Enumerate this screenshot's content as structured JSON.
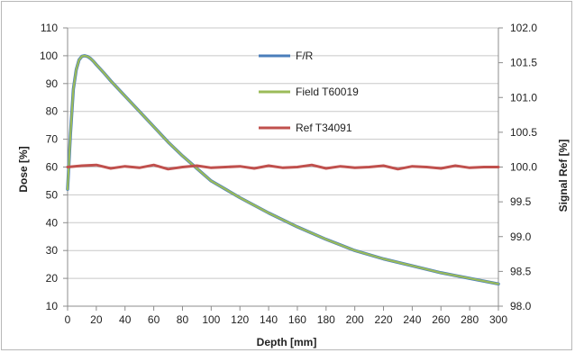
{
  "chart_data": {
    "type": "line",
    "xlabel": "Depth [mm]",
    "ylabel": "Dose [%]",
    "y2label": "Signal Ref [%]",
    "xlim": [
      0,
      300
    ],
    "ylim": [
      10,
      110
    ],
    "y2lim": [
      98.0,
      102.0
    ],
    "x_ticks": [
      "0",
      "20",
      "40",
      "60",
      "80",
      "100",
      "120",
      "140",
      "160",
      "180",
      "200",
      "220",
      "240",
      "260",
      "280",
      "300"
    ],
    "y_ticks": [
      "10",
      "20",
      "30",
      "40",
      "50",
      "60",
      "70",
      "80",
      "90",
      "100",
      "110"
    ],
    "y2_ticks": [
      "98.0",
      "98.5",
      "99.0",
      "99.5",
      "100.0",
      "100.5",
      "101.0",
      "101.5",
      "102.0"
    ],
    "grid": true,
    "legend_position": "top-center",
    "series": [
      {
        "name": "F/R",
        "axis": "left",
        "color": "#4a7ebb",
        "x": [
          0,
          2,
          4,
          6,
          8,
          10,
          12,
          14,
          16,
          18,
          20,
          25,
          30,
          40,
          50,
          60,
          70,
          80,
          90,
          100,
          110,
          120,
          140,
          160,
          180,
          200,
          220,
          240,
          260,
          280,
          300
        ],
        "y": [
          52,
          72,
          88,
          95,
          98.5,
          99.8,
          100,
          99.7,
          99,
          98,
          96.8,
          94,
          91,
          85.5,
          80,
          74.5,
          69,
          64,
          59.5,
          55,
          52,
          49,
          43.5,
          38.5,
          34,
          30,
          27,
          24.5,
          22,
          20,
          18
        ]
      },
      {
        "name": "Field T60019",
        "axis": "left",
        "color": "#9bbb59",
        "x": [
          0,
          2,
          4,
          6,
          8,
          10,
          12,
          14,
          16,
          18,
          20,
          25,
          30,
          40,
          50,
          60,
          70,
          80,
          90,
          100,
          110,
          120,
          140,
          160,
          180,
          200,
          220,
          240,
          260,
          280,
          300
        ],
        "y": [
          52,
          72,
          88,
          95,
          98.5,
          99.8,
          100,
          99.7,
          99,
          98,
          96.8,
          94,
          91,
          85.5,
          80,
          74.5,
          69,
          64,
          59.5,
          55,
          52,
          49,
          43.5,
          38.5,
          34,
          30,
          27,
          24.5,
          22,
          20,
          18
        ]
      },
      {
        "name": "Ref T34091",
        "axis": "right",
        "color": "#c0504d",
        "x": [
          0,
          10,
          20,
          30,
          40,
          50,
          60,
          70,
          80,
          90,
          100,
          110,
          120,
          130,
          140,
          150,
          160,
          170,
          180,
          190,
          200,
          210,
          220,
          230,
          240,
          250,
          260,
          270,
          280,
          290,
          300
        ],
        "y": [
          100.0,
          100.02,
          100.03,
          99.98,
          100.01,
          99.99,
          100.03,
          99.97,
          100.0,
          100.02,
          99.99,
          100.0,
          100.01,
          99.98,
          100.02,
          99.99,
          100.0,
          100.03,
          99.98,
          100.01,
          99.99,
          100.0,
          100.02,
          99.97,
          100.01,
          100.0,
          99.98,
          100.02,
          99.99,
          100.0,
          100.0
        ]
      }
    ]
  }
}
